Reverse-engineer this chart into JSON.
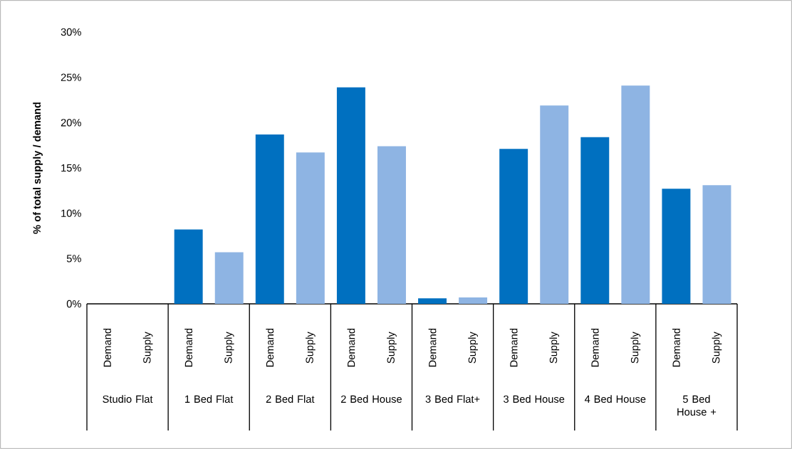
{
  "chart_data": {
    "type": "bar",
    "ylabel": "% of total supply / demand",
    "categories": [
      "Demand",
      "Supply",
      "Demand",
      "Supply",
      "Demand",
      "Supply",
      "Demand",
      "Supply",
      "Demand",
      "Supply",
      "Demand",
      "Supply",
      "Demand",
      "Supply",
      "Demand",
      "Supply"
    ],
    "values": [
      0,
      0,
      8.2,
      5.7,
      18.7,
      16.7,
      23.9,
      17.4,
      0.6,
      0.7,
      17.1,
      21.9,
      18.4,
      24.1,
      12.7,
      13.1
    ],
    "colors": [
      "#0070c0",
      "#8eb4e3",
      "#0070c0",
      "#8eb4e3",
      "#0070c0",
      "#8eb4e3",
      "#0070c0",
      "#8eb4e3",
      "#0070c0",
      "#8eb4e3",
      "#0070c0",
      "#8eb4e3",
      "#0070c0",
      "#8eb4e3",
      "#0070c0",
      "#8eb4e3"
    ],
    "annotations": [
      "Studio Flat",
      "1 Bed Flat",
      "2 Bed Flat",
      "2 Bed House",
      "3 Bed Flat+",
      "3 Bed House",
      "4 Bed House",
      "5 Bed House +"
    ],
    "ylim": [
      0,
      30
    ],
    "yticks": [
      {
        "value": 0,
        "label": "0%"
      },
      {
        "value": 5,
        "label": "5%"
      },
      {
        "value": 10,
        "label": "10%"
      },
      {
        "value": 15,
        "label": "15%"
      },
      {
        "value": 20,
        "label": "20%"
      },
      {
        "value": 25,
        "label": "25%"
      },
      {
        "value": 30,
        "label": "30%"
      }
    ]
  }
}
